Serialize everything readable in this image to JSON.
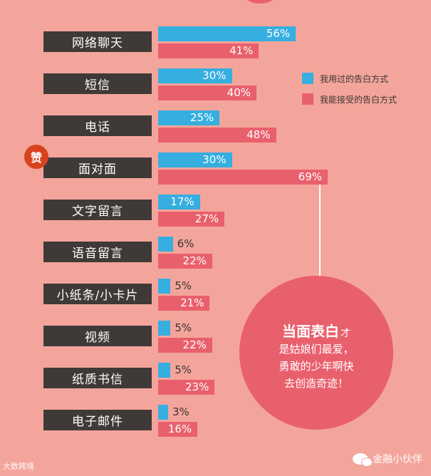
{
  "chart_data": {
    "type": "bar",
    "orientation": "horizontal",
    "categories": [
      "网络聊天",
      "短信",
      "电话",
      "面对面",
      "文字留言",
      "语音留言",
      "小纸条/小卡片",
      "视频",
      "纸质书信",
      "电子邮件"
    ],
    "series": [
      {
        "name": "我用过的告白方式",
        "values": [
          56,
          30,
          25,
          30,
          17,
          6,
          5,
          5,
          5,
          3
        ],
        "color": "#36aee0"
      },
      {
        "name": "我能接受的告白方式",
        "values": [
          41,
          40,
          48,
          69,
          27,
          22,
          21,
          22,
          23,
          16
        ],
        "color": "#e9606d"
      }
    ],
    "unit": "%",
    "legend_position": "top-right",
    "badge": {
      "text": "赞",
      "category": "面对面",
      "color": "#d9421f"
    },
    "callout": {
      "headline": "当面表白",
      "headline_tail": "才",
      "lines": [
        "是姑娘们最爱，",
        "勇敢的少年啊快",
        "去创造奇迹！"
      ],
      "points_to": "面对面"
    }
  },
  "watermarks": {
    "left": "大数跨境",
    "right": "金融小伙伴"
  },
  "colors": {
    "background": "#f4a59b",
    "label_bg": "#3f3a38",
    "used": "#36aee0",
    "accept": "#e9606d"
  }
}
